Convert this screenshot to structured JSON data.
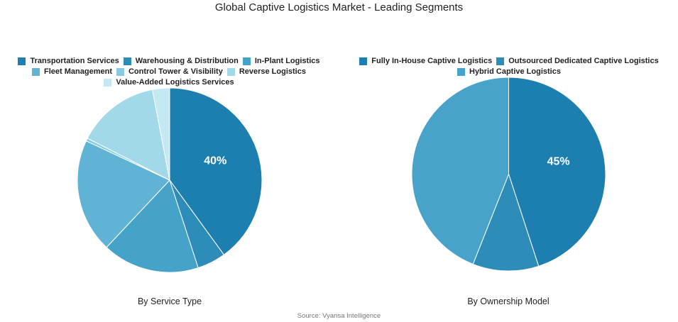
{
  "title": "Global Captive Logistics Market - Leading Segments",
  "source": "Source: Vyansa Intelligence",
  "chart_data": [
    {
      "type": "pie",
      "subtitle": "By Service Type",
      "labels": [
        "Transportation Services",
        "Warehousing & Distribution",
        "In-Plant Logistics",
        "Fleet Management",
        "Control Tower & Visibility",
        "Reverse Logistics",
        "Value-Added Logistics Services"
      ],
      "values": [
        40,
        5,
        17,
        20,
        0.5,
        14.5,
        3
      ],
      "colors": [
        "#1d7fb0",
        "#2e8cb8",
        "#45a3c9",
        "#60b3d4",
        "#88cbe0",
        "#a1d9e8",
        "#c4e9f2"
      ],
      "data_labels": [
        "40%",
        "",
        "",
        "",
        "",
        "",
        ""
      ],
      "legend_position": "top"
    },
    {
      "type": "pie",
      "subtitle": "By Ownership Model",
      "labels": [
        "Fully In-House Captive Logistics",
        "Outsourced Dedicated Captive Logistics",
        "Hybrid Captive Logistics"
      ],
      "values": [
        45,
        11,
        44
      ],
      "colors": [
        "#1d7fb0",
        "#2e8cb8",
        "#47a3c9"
      ],
      "data_labels": [
        "45%",
        "",
        ""
      ],
      "legend_position": "top"
    }
  ]
}
